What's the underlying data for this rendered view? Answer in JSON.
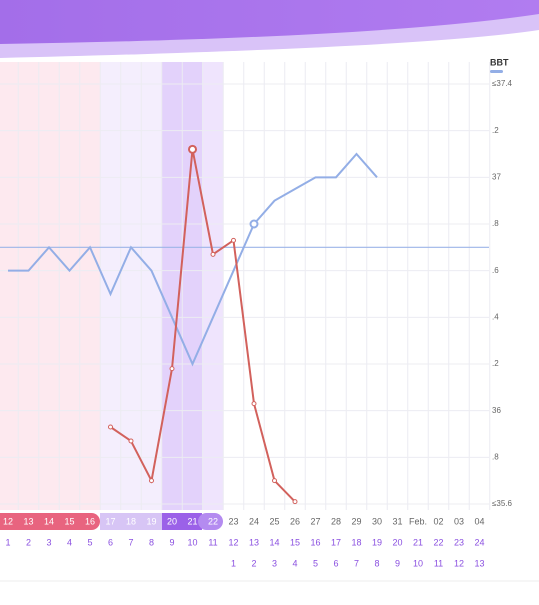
{
  "chart_data": {
    "type": "line",
    "categories": [
      "12",
      "13",
      "14",
      "15",
      "16",
      "17",
      "18",
      "19",
      "20",
      "21",
      "22",
      "23",
      "24",
      "25",
      "26",
      "27",
      "28",
      "29",
      "30",
      "31",
      "Feb.",
      "02",
      "03",
      "04"
    ],
    "cycle_days": [
      1,
      2,
      3,
      4,
      5,
      6,
      7,
      8,
      9,
      10,
      11,
      12,
      13,
      14,
      15,
      16,
      17,
      18,
      19,
      20,
      21,
      22,
      23,
      24
    ],
    "next_cycle_days": [
      null,
      null,
      null,
      null,
      null,
      null,
      null,
      null,
      null,
      null,
      null,
      1,
      2,
      3,
      4,
      5,
      6,
      7,
      8,
      9,
      10,
      11,
      12,
      13
    ],
    "series": [
      {
        "name": "BBT",
        "color": "#93aee6",
        "values": [
          36.6,
          36.6,
          36.7,
          36.6,
          36.7,
          36.5,
          36.7,
          36.6,
          36.4,
          36.2,
          36.4,
          36.6,
          36.8,
          36.9,
          36.95,
          37.0,
          37.0,
          37.1,
          37.0,
          null,
          null,
          null,
          null,
          null
        ]
      },
      {
        "color": "#d2615c",
        "values": [
          null,
          null,
          null,
          null,
          null,
          35.93,
          35.87,
          35.7,
          36.18,
          37.12,
          36.67,
          36.73,
          36.03,
          35.7,
          35.61,
          null,
          null,
          null,
          null,
          null,
          null,
          null,
          null,
          null
        ]
      }
    ],
    "coverline": 36.7,
    "ylim": [
      35.6,
      37.4
    ],
    "yticks": [
      {
        "value": 37.4,
        "label": "≤37.4"
      },
      {
        "value": 37.2,
        "label": ".2"
      },
      37,
      {
        "value": 36.8,
        "label": ".8"
      },
      {
        "value": 36.6,
        "label": ".6"
      },
      {
        "value": 36.4,
        "label": ".4"
      },
      {
        "value": 36.2,
        "label": ".2"
      },
      36,
      {
        "value": 35.8,
        "label": ".8"
      },
      {
        "value": 35.6,
        "label": "≤35.6"
      }
    ],
    "grid": true
  }
}
